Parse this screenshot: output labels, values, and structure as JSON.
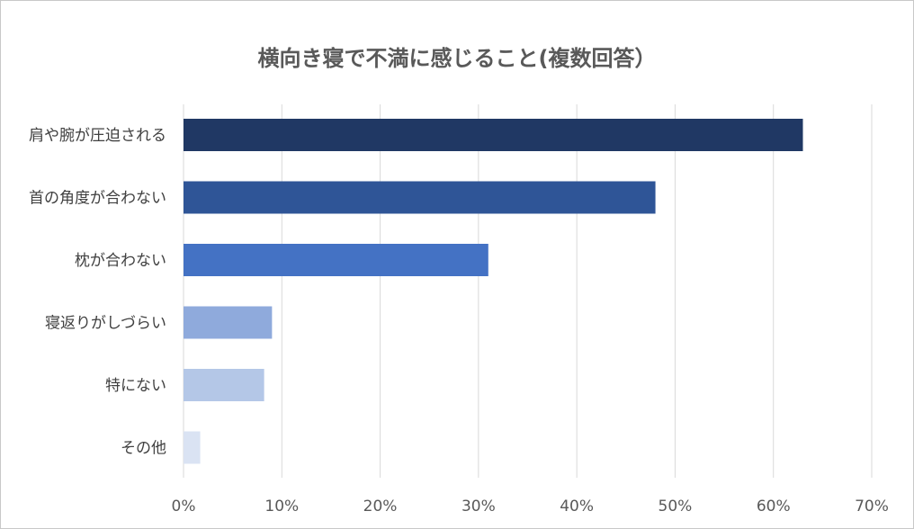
{
  "chart_data": {
    "type": "bar",
    "orientation": "horizontal",
    "title": "横向き寝で不満に感じること(複数回答）",
    "categories": [
      "肩や腕が圧迫される",
      "首の角度が合わない",
      "枕が合わない",
      "寝返りがしづらい",
      "特にない",
      "その他"
    ],
    "values": [
      63,
      48,
      31,
      9,
      8.2,
      1.7
    ],
    "unit": "%",
    "xlim": [
      0,
      70
    ],
    "ticks": [
      0,
      10,
      20,
      30,
      40,
      50,
      60,
      70
    ],
    "tick_labels": [
      "0%",
      "10%",
      "20%",
      "30%",
      "40%",
      "50%",
      "60%",
      "70%"
    ],
    "grid": true,
    "legend": "none",
    "bar_colors": [
      "#203864",
      "#2f5597",
      "#4472c4",
      "#8faadc",
      "#b4c7e7",
      "#dae3f3"
    ]
  }
}
